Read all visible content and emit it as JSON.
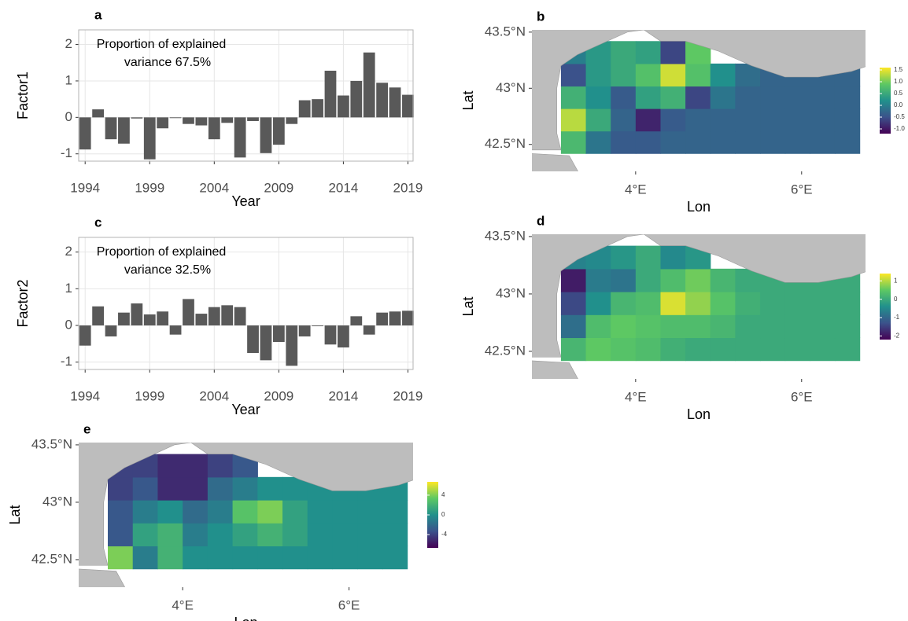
{
  "chart_data": [
    {
      "type": "bar",
      "label": "a",
      "ylabel": "Factor1",
      "xlabel": "Year",
      "annotation": [
        "Proportion of explained",
        "variance 67.5%"
      ],
      "x": [
        1994,
        1995,
        1996,
        1997,
        1998,
        1999,
        2000,
        2001,
        2002,
        2003,
        2004,
        2005,
        2006,
        2007,
        2008,
        2009,
        2010,
        2011,
        2012,
        2013,
        2014,
        2015,
        2016,
        2017,
        2018,
        2019
      ],
      "values": [
        -0.88,
        0.22,
        -0.6,
        -0.72,
        -0.03,
        -1.15,
        -0.3,
        -0.02,
        -0.18,
        -0.22,
        -0.6,
        -0.15,
        -1.1,
        -0.1,
        -0.98,
        -0.75,
        -0.18,
        0.47,
        0.5,
        1.28,
        0.6,
        1.0,
        1.78,
        0.95,
        0.82,
        0.62
      ],
      "color": "#595959",
      "xlim": [
        1993.5,
        2019.4
      ],
      "xticks": [
        1994,
        1999,
        2004,
        2009,
        2014,
        2019
      ],
      "ylim": [
        -1.2,
        2.4
      ],
      "yticks": [
        -1,
        0,
        1,
        2
      ],
      "grid": true
    },
    {
      "type": "heatmap",
      "label": "b",
      "xlabel": "Lon",
      "ylabel": "Lat",
      "x": [
        3.25,
        3.55,
        3.85,
        4.15,
        4.45,
        4.75,
        5.05,
        5.35,
        5.65,
        5.95,
        6.25,
        6.55
      ],
      "y": [
        42.52,
        42.72,
        42.92,
        43.12,
        43.32
      ],
      "z": [
        [
          0.7,
          -0.1,
          -0.4,
          -0.4,
          -0.3,
          -0.3,
          -0.3,
          -0.3,
          -0.3,
          -0.3,
          -0.3,
          -0.3
        ],
        [
          1.3,
          0.5,
          -0.3,
          -0.9,
          -0.4,
          -0.3,
          -0.3,
          -0.3,
          -0.3,
          -0.3,
          -0.3,
          -0.3
        ],
        [
          0.6,
          0.2,
          -0.4,
          0.4,
          0.6,
          -0.6,
          -0.1,
          -0.3,
          -0.3,
          -0.3,
          -0.3,
          -0.3
        ],
        [
          -0.5,
          0.3,
          0.5,
          0.8,
          1.4,
          0.8,
          0.2,
          -0.2,
          -0.3,
          -0.3,
          -0.3,
          -0.3
        ],
        [
          0.0,
          0.3,
          0.5,
          0.4,
          -0.6,
          0.9,
          null,
          null,
          null,
          null,
          null,
          null
        ]
      ],
      "xlim": [
        2.75,
        6.77
      ],
      "ylim": [
        42.26,
        43.52
      ],
      "xticks": [
        {
          "value": 4,
          "label": "4°E"
        },
        {
          "value": 6,
          "label": "6°E"
        }
      ],
      "yticks": [
        {
          "value": 42.5,
          "label": "42.5°N"
        },
        {
          "value": 43,
          "label": "43°N"
        },
        {
          "value": 43.5,
          "label": "43.5°N"
        }
      ],
      "colormap": "viridis",
      "clim": [
        -1.2,
        1.6
      ],
      "cticks": [
        {
          "value": -1,
          "label": "-1.0"
        },
        {
          "value": -0.5,
          "label": "-0.5"
        },
        {
          "value": 0,
          "label": "0.0"
        },
        {
          "value": 0.5,
          "label": "0.5"
        },
        {
          "value": 1,
          "label": "1.0"
        },
        {
          "value": 1.5,
          "label": "1.5"
        }
      ]
    },
    {
      "type": "bar",
      "label": "c",
      "ylabel": "Factor2",
      "xlabel": "Year",
      "annotation": [
        "Proportion of explained",
        "variance 32.5%"
      ],
      "x": [
        1994,
        1995,
        1996,
        1997,
        1998,
        1999,
        2000,
        2001,
        2002,
        2003,
        2004,
        2005,
        2006,
        2007,
        2008,
        2009,
        2010,
        2011,
        2012,
        2013,
        2014,
        2015,
        2016,
        2017,
        2018,
        2019
      ],
      "values": [
        -0.55,
        0.52,
        -0.3,
        0.35,
        0.6,
        0.3,
        0.38,
        -0.25,
        0.72,
        0.32,
        0.5,
        0.55,
        0.5,
        -0.75,
        -0.95,
        -0.45,
        -1.1,
        -0.3,
        -0.02,
        -0.52,
        -0.6,
        0.25,
        -0.25,
        0.35,
        0.38,
        0.4
      ],
      "color": "#595959",
      "xlim": [
        1993.5,
        2019.4
      ],
      "xticks": [
        1994,
        1999,
        2004,
        2009,
        2014,
        2019
      ],
      "ylim": [
        -1.2,
        2.4
      ],
      "yticks": [
        -1,
        0,
        1,
        2
      ],
      "grid": true
    },
    {
      "type": "heatmap",
      "label": "d",
      "xlabel": "Lon",
      "ylabel": "Lat",
      "x": [
        3.25,
        3.55,
        3.85,
        4.15,
        4.45,
        4.75,
        5.05,
        5.35,
        5.65,
        5.95,
        6.25,
        6.55
      ],
      "y": [
        42.52,
        42.72,
        42.92,
        43.12,
        43.32
      ],
      "z": [
        [
          0.2,
          0.5,
          0.4,
          0.3,
          0.1,
          0.0,
          0.0,
          0.0,
          0.0,
          0.0,
          0.0,
          0.0
        ],
        [
          -0.9,
          0.3,
          0.5,
          0.4,
          0.3,
          0.3,
          0.2,
          0.0,
          0.0,
          0.0,
          0.0,
          0.0
        ],
        [
          -1.4,
          -0.4,
          0.2,
          0.3,
          1.2,
          0.8,
          0.4,
          0.1,
          0.0,
          0.0,
          0.0,
          0.0
        ],
        [
          -1.9,
          -0.7,
          -0.8,
          0.0,
          0.3,
          0.6,
          0.2,
          0.0,
          0.0,
          0.0,
          0.0,
          0.0
        ],
        [
          -0.6,
          -0.5,
          -0.3,
          0.0,
          -0.5,
          -0.3,
          null,
          null,
          null,
          null,
          null,
          null
        ]
      ],
      "xlim": [
        2.75,
        6.77
      ],
      "ylim": [
        42.26,
        43.52
      ],
      "xticks": [
        {
          "value": 4,
          "label": "4°E"
        },
        {
          "value": 6,
          "label": "6°E"
        }
      ],
      "yticks": [
        {
          "value": 42.5,
          "label": "42.5°N"
        },
        {
          "value": 43,
          "label": "43°N"
        },
        {
          "value": 43.5,
          "label": "43.5°N"
        }
      ],
      "colormap": "viridis",
      "clim": [
        -2.2,
        1.4
      ],
      "cticks": [
        -2,
        -1,
        0,
        1
      ]
    },
    {
      "type": "heatmap",
      "label": "e",
      "xlabel": "Lon",
      "ylabel": "Lat",
      "x": [
        3.25,
        3.55,
        3.85,
        4.15,
        4.45,
        4.75,
        5.05,
        5.35,
        5.65,
        5.95,
        6.25,
        6.55
      ],
      "y": [
        42.52,
        42.72,
        42.92,
        43.12,
        43.32
      ],
      "z": [
        [
          4,
          -1,
          2,
          0,
          0,
          0,
          0,
          0,
          0,
          0,
          0,
          0
        ],
        [
          -3,
          1,
          2,
          -1,
          0,
          1,
          2,
          1,
          0,
          0,
          0,
          0
        ],
        [
          -3,
          -1,
          0,
          -2,
          -1,
          3,
          4,
          1,
          0,
          0,
          0,
          0
        ],
        [
          -4,
          -3,
          -5,
          -5,
          -2,
          -1,
          0,
          0,
          0,
          0,
          0,
          0
        ],
        [
          -4,
          -4,
          -5,
          -5,
          -4,
          -3,
          null,
          null,
          null,
          null,
          null,
          null
        ]
      ],
      "xlim": [
        2.75,
        6.77
      ],
      "ylim": [
        42.26,
        43.52
      ],
      "xticks": [
        {
          "value": 4,
          "label": "4°E"
        },
        {
          "value": 6,
          "label": "6°E"
        }
      ],
      "yticks": [
        {
          "value": 42.5,
          "label": "42.5°N"
        },
        {
          "value": 43,
          "label": "43°N"
        },
        {
          "value": 43.5,
          "label": "43.5°N"
        }
      ],
      "colormap": "viridis",
      "clim": [
        -6.7,
        6.7
      ],
      "cticks": [
        -4,
        0,
        4
      ]
    }
  ]
}
